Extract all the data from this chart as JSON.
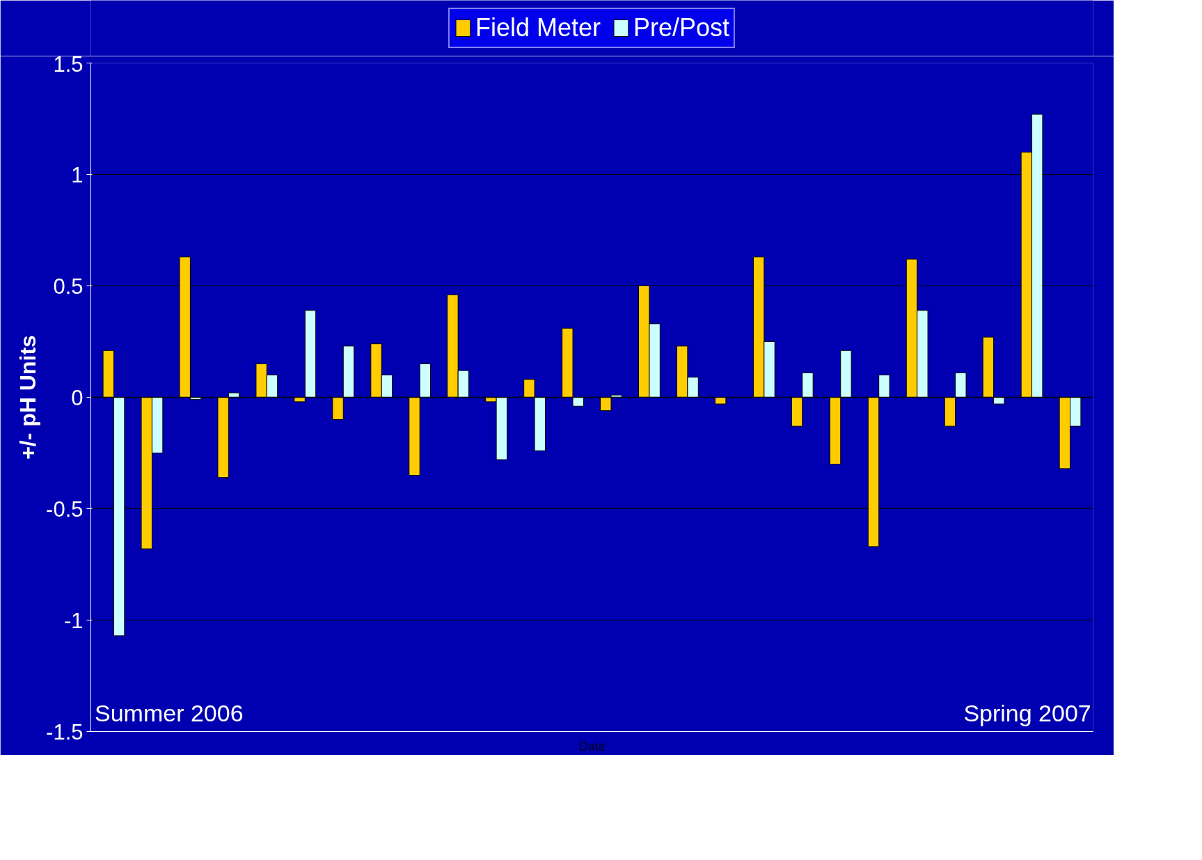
{
  "chart_data": {
    "type": "bar",
    "xlabel": "Date",
    "ylabel": "+/- pH Units",
    "categories": [
      null,
      null,
      null,
      null,
      null,
      null,
      null,
      null,
      null,
      null,
      null,
      null,
      null,
      null,
      null,
      null,
      null,
      null,
      null,
      null,
      null,
      null,
      null,
      null,
      null,
      null
    ],
    "series": [
      {
        "name": "Field Meter",
        "color": "#ffcc00",
        "values": [
          0.21,
          -0.68,
          0.63,
          -0.36,
          0.15,
          -0.02,
          -0.1,
          0.24,
          -0.35,
          0.46,
          -0.02,
          0.08,
          0.31,
          -0.06,
          0.5,
          0.23,
          -0.03,
          0.63,
          -0.13,
          -0.3,
          -0.67,
          0.62,
          -0.13,
          0.27,
          1.1,
          -0.32
        ]
      },
      {
        "name": "Pre/Post",
        "color": "#ccffff",
        "values": [
          -1.07,
          -0.25,
          -0.01,
          0.02,
          0.1,
          0.39,
          0.23,
          0.1,
          0.15,
          0.12,
          -0.28,
          -0.24,
          -0.04,
          0.01,
          0.33,
          0.09,
          null,
          0.25,
          0.11,
          0.21,
          0.1,
          0.39,
          0.11,
          -0.03,
          1.27,
          -0.13
        ]
      }
    ],
    "ylim": [
      -1.5,
      1.5
    ],
    "yticks": [
      -1.5,
      -1,
      -0.5,
      0,
      0.5,
      1,
      1.5
    ],
    "grid": "y",
    "legend": "top",
    "tick_labels": "y",
    "annotations": [
      "Summer 2006",
      "Spring 2007"
    ]
  }
}
